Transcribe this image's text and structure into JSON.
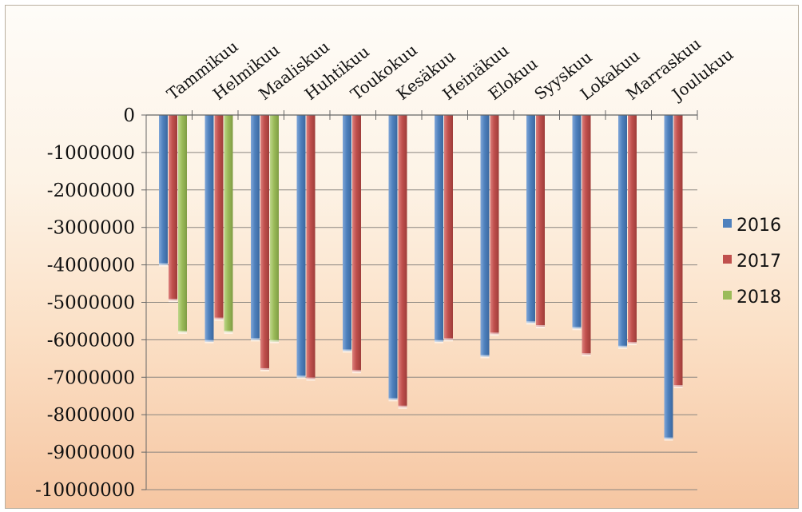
{
  "chart_data": {
    "type": "bar",
    "title": "",
    "xlabel": "",
    "ylabel": "",
    "categories": [
      "Tammikuu",
      "Helmikuu",
      "Maaliskuu",
      "Huhtikuu",
      "Toukokuu",
      "Kesäkuu",
      "Heinäkuu",
      "Elokuu",
      "Syyskuu",
      "Lokakuu",
      "Marraskuu",
      "Joulukuu"
    ],
    "ylim": [
      -10000000,
      0
    ],
    "yticks": [
      0,
      -1000000,
      -2000000,
      -3000000,
      -4000000,
      -5000000,
      -6000000,
      -7000000,
      -8000000,
      -9000000,
      -10000000
    ],
    "ytick_labels": [
      "0",
      "-1000000",
      "-2000000",
      "-3000000",
      "-4000000",
      "-5000000",
      "-6000000",
      "-7000000",
      "-8000000",
      "-9000000",
      "-10000000"
    ],
    "grid": true,
    "x_axis_position": "top",
    "legend_position": "right",
    "series": [
      {
        "name": "2016",
        "color": "#4f81bd",
        "values": [
          -4000000,
          -6050000,
          -6000000,
          -7000000,
          -6300000,
          -7600000,
          -6050000,
          -6450000,
          -5550000,
          -5700000,
          -6200000,
          -8650000
        ]
      },
      {
        "name": "2017",
        "color": "#c0504d",
        "values": [
          -4950000,
          -5450000,
          -6800000,
          -7050000,
          -6850000,
          -7800000,
          -6000000,
          -5850000,
          -5650000,
          -6400000,
          -6100000,
          -7250000
        ]
      },
      {
        "name": "2018",
        "color": "#9bbb59",
        "values": [
          -5800000,
          -5800000,
          -6050000,
          null,
          null,
          null,
          null,
          null,
          null,
          null,
          null,
          null
        ]
      }
    ]
  }
}
